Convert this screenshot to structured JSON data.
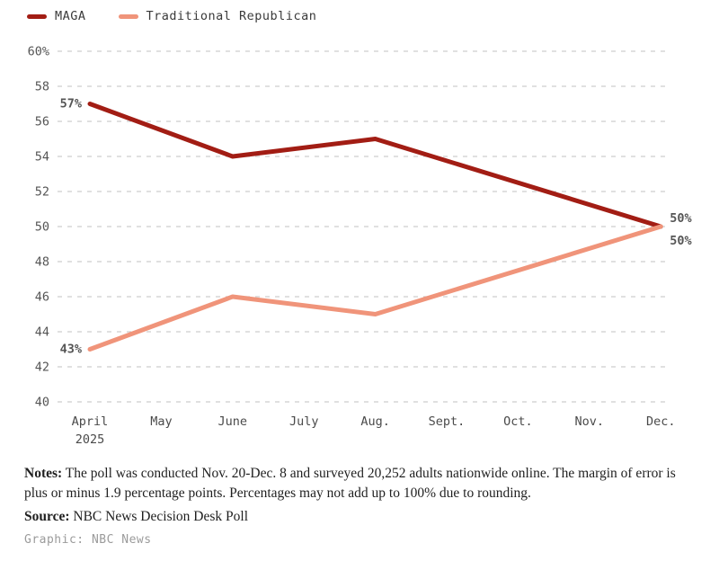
{
  "chart_data": {
    "type": "line",
    "title": "",
    "xlabel": "",
    "ylabel": "",
    "categories": [
      "April",
      "May",
      "June",
      "July",
      "Aug.",
      "Sept.",
      "Oct.",
      "Nov.",
      "Dec."
    ],
    "x_sublabel": {
      "category": "April",
      "text": "2025"
    },
    "ylim": [
      40,
      60
    ],
    "ytick_step": 2,
    "ytick_first_suffix": "%",
    "grid": "horizontal-dashed",
    "legend_position": "top-left",
    "series": [
      {
        "name": "MAGA",
        "color": "#A21D14",
        "points": [
          {
            "x": "April",
            "y": 57
          },
          {
            "x": "June",
            "y": 54
          },
          {
            "x": "Aug.",
            "y": 55
          },
          {
            "x": "Dec.",
            "y": 50
          }
        ]
      },
      {
        "name": "Traditional Republican",
        "color": "#F0947A",
        "points": [
          {
            "x": "April",
            "y": 43
          },
          {
            "x": "June",
            "y": 46
          },
          {
            "x": "Aug.",
            "y": 45
          },
          {
            "x": "Dec.",
            "y": 50
          }
        ]
      }
    ],
    "annotations": [
      {
        "text": "57%",
        "x": "April",
        "y": 57,
        "side": "left",
        "dy": 0,
        "color": "#A21D14"
      },
      {
        "text": "43%",
        "x": "April",
        "y": 43,
        "side": "left",
        "dy": 0,
        "color": "#C75D43"
      },
      {
        "text": "50%",
        "x": "Dec.",
        "y": 50,
        "side": "right",
        "dy": -9,
        "color": "#A21D14"
      },
      {
        "text": "50%",
        "x": "Dec.",
        "y": 50,
        "side": "right",
        "dy": 16,
        "color": "#C75D43"
      }
    ]
  },
  "notes": {
    "label": "Notes:",
    "text": "The poll was conducted Nov. 20-Dec. 8 and surveyed 20,252 adults nationwide online. The margin of error is plus or minus 1.9 percentage points. Percentages may not add up to 100% due to rounding."
  },
  "source": {
    "label": "Source:",
    "text": "NBC News Decision Desk Poll"
  },
  "credit": {
    "text": "Graphic: NBC News"
  }
}
